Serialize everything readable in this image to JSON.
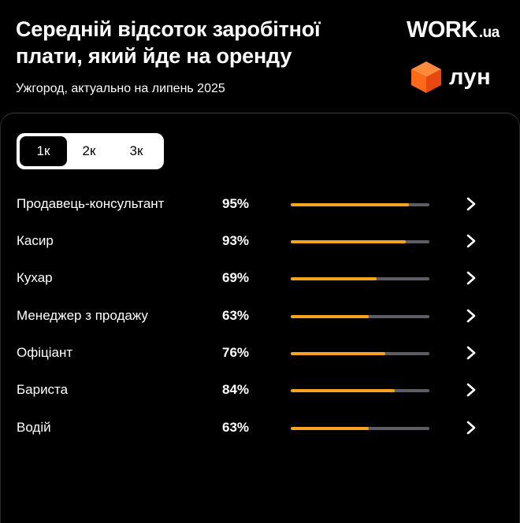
{
  "header": {
    "title": "Середній відсоток заробітної плати, який йде на оренду",
    "subtitle": "Ужгород, актуально на липень 2025",
    "logo_work": "WORK",
    "logo_work_suffix": ".ua",
    "logo_lun": "лун"
  },
  "tabs": [
    {
      "label": "1к",
      "active": true
    },
    {
      "label": "2к",
      "active": false
    },
    {
      "label": "3к",
      "active": false
    }
  ],
  "rows": [
    {
      "label": "Продавець-консультант",
      "percent_label": "95%",
      "value": 0.85
    },
    {
      "label": "Касир",
      "percent_label": "93%",
      "value": 0.83
    },
    {
      "label": "Кухар",
      "percent_label": "69%",
      "value": 0.62
    },
    {
      "label": "Менеджер з продажу",
      "percent_label": "63%",
      "value": 0.56
    },
    {
      "label": "Офіціант",
      "percent_label": "76%",
      "value": 0.68
    },
    {
      "label": "Бариста",
      "percent_label": "84%",
      "value": 0.75
    },
    {
      "label": "Водій",
      "percent_label": "63%",
      "value": 0.56
    }
  ],
  "colors": {
    "accent": "#f7a51c",
    "track": "#5d5d63",
    "lun_orange": "#ff6a1a",
    "background": "#000000"
  },
  "icons": {
    "row_action": "chevron-right-icon",
    "lun_logo": "cube-icon"
  }
}
